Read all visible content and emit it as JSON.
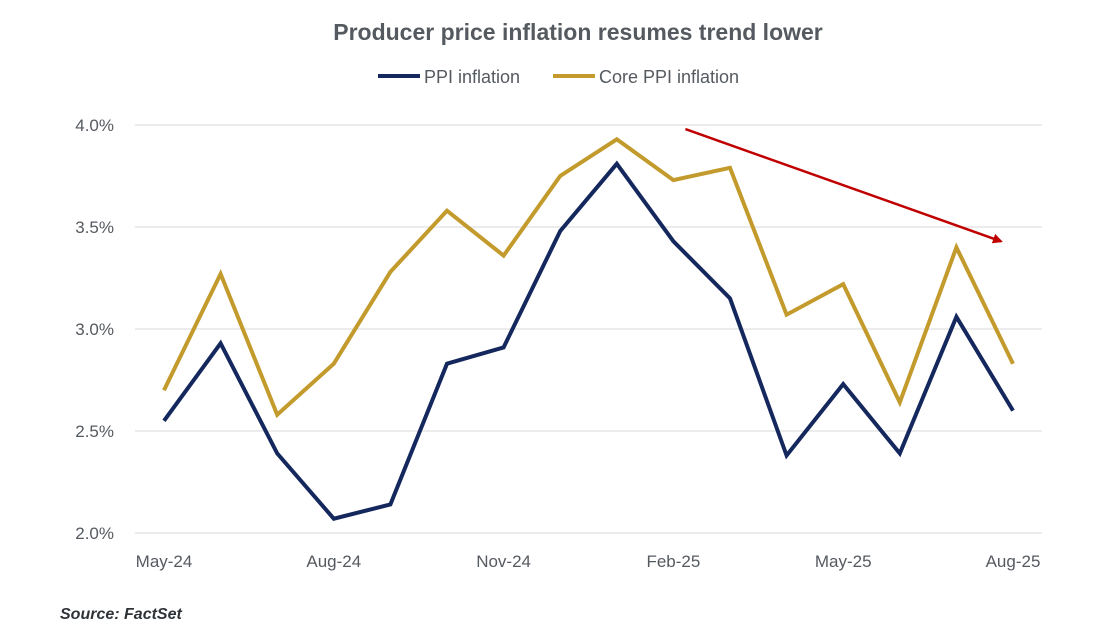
{
  "source": "Source: FactSet",
  "chart_data": {
    "type": "line",
    "title": "Producer price inflation resumes trend lower",
    "xlabel": "",
    "ylabel": "",
    "x": [
      "May-24",
      "Jun-24",
      "Jul-24",
      "Aug-24",
      "Sep-24",
      "Oct-24",
      "Nov-24",
      "Dec-24",
      "Jan-25",
      "Feb-25",
      "Mar-25",
      "Apr-25",
      "May-25",
      "Jun-25",
      "Jul-25",
      "Aug-25"
    ],
    "x_tick_labels": [
      "May-24",
      "Aug-24",
      "Nov-24",
      "Feb-25",
      "May-25",
      "Aug-25"
    ],
    "y_ticks": [
      "2.0%",
      "2.5%",
      "3.0%",
      "3.5%",
      "4.0%"
    ],
    "ylim": [
      2.0,
      4.0
    ],
    "grid": true,
    "legend_position": "top",
    "series": [
      {
        "name": "PPI inflation",
        "color": "#14285e",
        "values": [
          2.55,
          2.93,
          2.39,
          2.07,
          2.14,
          2.83,
          2.91,
          3.48,
          3.81,
          3.43,
          3.15,
          2.38,
          2.73,
          2.39,
          3.06,
          2.6
        ]
      },
      {
        "name": "Core PPI inflation",
        "color": "#c39a2c",
        "values": [
          2.7,
          3.27,
          2.58,
          2.83,
          3.28,
          3.58,
          3.36,
          3.75,
          3.93,
          3.73,
          3.79,
          3.07,
          3.22,
          2.64,
          3.4,
          2.83
        ]
      }
    ],
    "annotations": [
      {
        "type": "trend-arrow",
        "color": "#c00000",
        "from": {
          "x": "Feb-25",
          "y": 3.98
        },
        "to": {
          "x": "Aug-25",
          "y": 3.43
        }
      }
    ]
  }
}
